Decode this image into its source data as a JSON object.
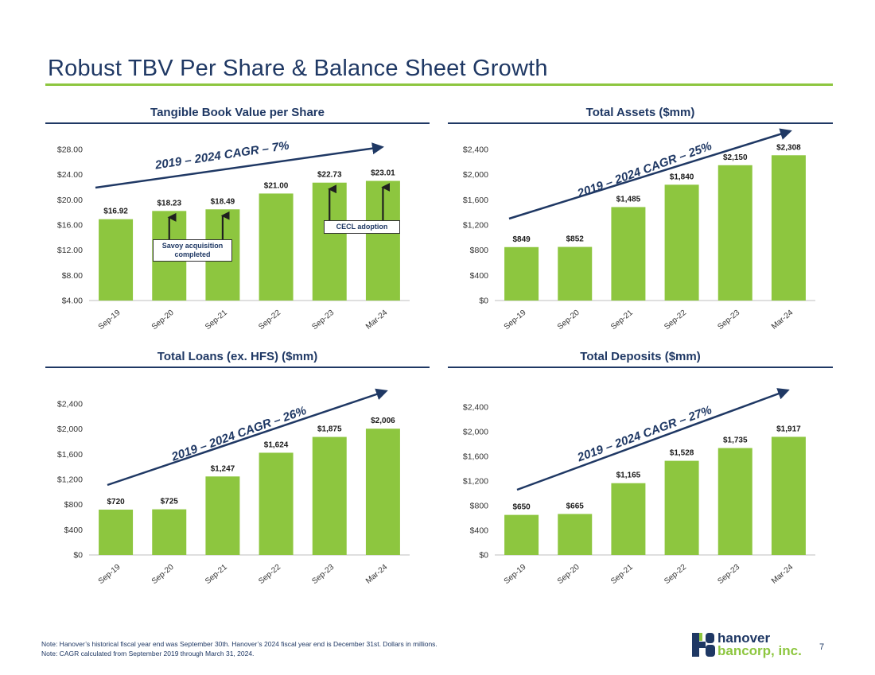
{
  "slide": {
    "title": "Robust TBV Per Share & Balance Sheet Growth",
    "page_number": "7",
    "note_1": "Note: Hanover’s historical fiscal year end was September 30th. Hanover’s 2024 fiscal year end is December 31st. Dollars in millions.",
    "note_2": "Note: CAGR calculated from September 2019 through March 31, 2024.",
    "logo_word_1": "hanover",
    "logo_word_2": "bancorp, inc."
  },
  "colors": {
    "bar": "#8dc63f",
    "text": "#1f3864",
    "accent_rule": "#8dc63f"
  },
  "chart_data": [
    {
      "type": "bar",
      "title": "Tangible Book Value per Share",
      "categories": [
        "Sep-19",
        "Sep-20",
        "Sep-21",
        "Sep-22",
        "Sep-23",
        "Mar-24"
      ],
      "values": [
        16.92,
        18.23,
        18.49,
        21.0,
        22.73,
        23.01
      ],
      "labels": [
        "$16.92",
        "$18.23",
        "$18.49",
        "$21.00",
        "$22.73",
        "$23.01"
      ],
      "yticks": [
        "$4.00",
        "$8.00",
        "$12.00",
        "$16.00",
        "$20.00",
        "$24.00",
        "$28.00"
      ],
      "ylim": [
        4,
        28
      ],
      "cagr": "2019 – 2024 CAGR – 7%",
      "callouts": [
        {
          "text": "Savoy acquisition completed",
          "bars": [
            1,
            2
          ]
        },
        {
          "text": "CECL adoption",
          "bars": [
            4,
            5
          ]
        }
      ]
    },
    {
      "type": "bar",
      "title": "Total Assets ($mm)",
      "categories": [
        "Sep-19",
        "Sep-20",
        "Sep-21",
        "Sep-22",
        "Sep-23",
        "Mar-24"
      ],
      "values": [
        849,
        852,
        1485,
        1840,
        2150,
        2308
      ],
      "labels": [
        "$849",
        "$852",
        "$1,485",
        "$1,840",
        "$2,150",
        "$2,308"
      ],
      "yticks": [
        "$0",
        "$400",
        "$800",
        "$1,200",
        "$1,600",
        "$2,000",
        "$2,400"
      ],
      "ylim": [
        0,
        2400
      ],
      "cagr": "2019 – 2024 CAGR – 25%"
    },
    {
      "type": "bar",
      "title": "Total Loans (ex. HFS) ($mm)",
      "categories": [
        "Sep-19",
        "Sep-20",
        "Sep-21",
        "Sep-22",
        "Sep-23",
        "Mar-24"
      ],
      "values": [
        720,
        725,
        1247,
        1624,
        1875,
        2006
      ],
      "labels": [
        "$720",
        "$725",
        "$1,247",
        "$1,624",
        "$1,875",
        "$2,006"
      ],
      "yticks": [
        "$0",
        "$400",
        "$800",
        "$1,200",
        "$1,600",
        "$2,000",
        "$2,400"
      ],
      "ylim": [
        0,
        2400
      ],
      "cagr": "2019 – 2024 CAGR – 26%"
    },
    {
      "type": "bar",
      "title": "Total Deposits ($mm)",
      "categories": [
        "Sep-19",
        "Sep-20",
        "Sep-21",
        "Sep-22",
        "Sep-23",
        "Mar-24"
      ],
      "values": [
        650,
        665,
        1165,
        1528,
        1735,
        1917
      ],
      "labels": [
        "$650",
        "$665",
        "$1,165",
        "$1,528",
        "$1,735",
        "$1,917"
      ],
      "yticks": [
        "$0",
        "$400",
        "$800",
        "$1,200",
        "$1,600",
        "$2,000",
        "$2,400"
      ],
      "ylim": [
        0,
        2400
      ],
      "cagr": "2019 – 2024 CAGR – 27%"
    }
  ]
}
